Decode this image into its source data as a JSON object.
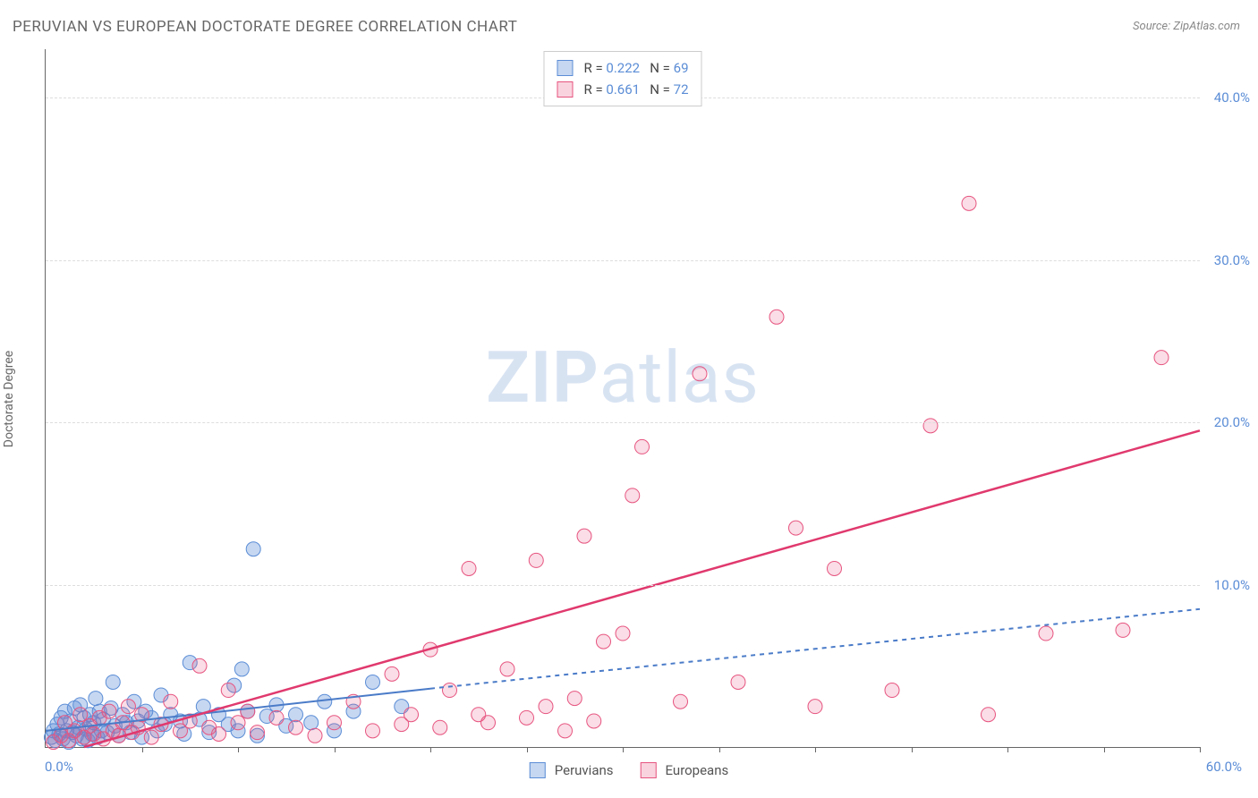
{
  "title": "PERUVIAN VS EUROPEAN DOCTORATE DEGREE CORRELATION CHART",
  "source": "Source: ZipAtlas.com",
  "watermark_bold": "ZIP",
  "watermark_light": "atlas",
  "ylabel": "Doctorate Degree",
  "chart": {
    "type": "scatter",
    "xlim": [
      0,
      60
    ],
    "ylim": [
      0,
      43
    ],
    "yticks": [
      10,
      20,
      30,
      40
    ],
    "ytick_labels": [
      "10.0%",
      "20.0%",
      "30.0%",
      "40.0%"
    ],
    "xticks": [
      5,
      10,
      15,
      20,
      25,
      30,
      35,
      40,
      45,
      50,
      55,
      60
    ],
    "xaxis_start": "0.0%",
    "xaxis_end": "60.0%",
    "grid_color": "#dddddd",
    "axis_color": "#666666",
    "background_color": "#ffffff",
    "marker_radius": 8,
    "series": [
      {
        "name": "Peruvians",
        "color_fill": "rgba(91,141,214,0.35)",
        "color_stroke": "#5b8dd6",
        "R": 0.222,
        "N": 69,
        "trend": {
          "x0": 0,
          "y0": 1.0,
          "x1": 20,
          "y1": 3.6,
          "x2": 60,
          "y2": 8.5,
          "solid_until": 20,
          "dash": "5,5",
          "width": 2,
          "color": "#4a7bc8"
        },
        "points": [
          [
            0.3,
            0.6
          ],
          [
            0.4,
            1.0
          ],
          [
            0.5,
            0.4
          ],
          [
            0.6,
            1.4
          ],
          [
            0.7,
            0.8
          ],
          [
            0.8,
            1.8
          ],
          [
            0.9,
            0.5
          ],
          [
            1.0,
            2.2
          ],
          [
            1.1,
            1.0
          ],
          [
            1.2,
            0.3
          ],
          [
            1.3,
            1.6
          ],
          [
            1.4,
            0.9
          ],
          [
            1.5,
            2.4
          ],
          [
            1.6,
            0.7
          ],
          [
            1.7,
            1.2
          ],
          [
            1.8,
            2.6
          ],
          [
            1.9,
            0.5
          ],
          [
            2.0,
            1.8
          ],
          [
            2.1,
            1.1
          ],
          [
            2.2,
            0.4
          ],
          [
            2.3,
            2.0
          ],
          [
            2.4,
            0.8
          ],
          [
            2.5,
            1.5
          ],
          [
            2.6,
            3.0
          ],
          [
            2.7,
            0.6
          ],
          [
            2.8,
            2.2
          ],
          [
            2.9,
            1.0
          ],
          [
            3.0,
            1.7
          ],
          [
            3.2,
            0.9
          ],
          [
            3.4,
            2.4
          ],
          [
            3.5,
            4.0
          ],
          [
            3.6,
            1.3
          ],
          [
            3.8,
            0.7
          ],
          [
            4.0,
            2.0
          ],
          [
            4.2,
            1.5
          ],
          [
            4.4,
            0.9
          ],
          [
            4.6,
            2.8
          ],
          [
            4.8,
            1.6
          ],
          [
            5.0,
            0.6
          ],
          [
            5.2,
            2.2
          ],
          [
            5.5,
            1.8
          ],
          [
            5.8,
            1.0
          ],
          [
            6.0,
            3.2
          ],
          [
            6.2,
            1.4
          ],
          [
            6.5,
            2.0
          ],
          [
            7.0,
            1.6
          ],
          [
            7.2,
            0.8
          ],
          [
            7.5,
            5.2
          ],
          [
            8.0,
            1.7
          ],
          [
            8.2,
            2.5
          ],
          [
            8.5,
            0.9
          ],
          [
            9.0,
            2.0
          ],
          [
            9.5,
            1.4
          ],
          [
            9.8,
            3.8
          ],
          [
            10.0,
            1.0
          ],
          [
            10.2,
            4.8
          ],
          [
            10.5,
            2.2
          ],
          [
            11.0,
            0.7
          ],
          [
            11.5,
            1.9
          ],
          [
            12.0,
            2.6
          ],
          [
            12.5,
            1.3
          ],
          [
            13.0,
            2.0
          ],
          [
            13.8,
            1.5
          ],
          [
            14.5,
            2.8
          ],
          [
            15.0,
            1.0
          ],
          [
            16.0,
            2.2
          ],
          [
            17.0,
            4.0
          ],
          [
            10.8,
            12.2
          ],
          [
            18.5,
            2.5
          ]
        ]
      },
      {
        "name": "Europeans",
        "color_fill": "rgba(231,84,128,0.2)",
        "color_stroke": "#e75480",
        "R": 0.661,
        "N": 72,
        "trend": {
          "x0": 2,
          "y0": 0,
          "x1": 60,
          "y1": 19.5,
          "solid_until": 60,
          "width": 2.5,
          "color": "#e0396e"
        },
        "points": [
          [
            0.4,
            0.3
          ],
          [
            0.8,
            0.7
          ],
          [
            1.0,
            1.5
          ],
          [
            1.2,
            0.4
          ],
          [
            1.5,
            1.0
          ],
          [
            1.8,
            2.0
          ],
          [
            2.0,
            0.6
          ],
          [
            2.3,
            1.3
          ],
          [
            2.5,
            0.8
          ],
          [
            2.8,
            1.8
          ],
          [
            3.0,
            0.5
          ],
          [
            3.3,
            2.2
          ],
          [
            3.5,
            1.0
          ],
          [
            3.8,
            0.7
          ],
          [
            4.0,
            1.5
          ],
          [
            4.3,
            2.5
          ],
          [
            4.5,
            0.9
          ],
          [
            4.8,
            1.2
          ],
          [
            5.0,
            2.0
          ],
          [
            5.5,
            0.6
          ],
          [
            6.0,
            1.4
          ],
          [
            6.5,
            2.8
          ],
          [
            7.0,
            1.0
          ],
          [
            7.5,
            1.6
          ],
          [
            8.0,
            5.0
          ],
          [
            8.5,
            1.2
          ],
          [
            9.0,
            0.8
          ],
          [
            9.5,
            3.5
          ],
          [
            10.0,
            1.5
          ],
          [
            10.5,
            2.2
          ],
          [
            11.0,
            0.9
          ],
          [
            12.0,
            1.8
          ],
          [
            13.0,
            1.2
          ],
          [
            14.0,
            0.7
          ],
          [
            15.0,
            1.5
          ],
          [
            16.0,
            2.8
          ],
          [
            17.0,
            1.0
          ],
          [
            18.0,
            4.5
          ],
          [
            18.5,
            1.4
          ],
          [
            19.0,
            2.0
          ],
          [
            20.0,
            6.0
          ],
          [
            20.5,
            1.2
          ],
          [
            21.0,
            3.5
          ],
          [
            22.0,
            11.0
          ],
          [
            22.5,
            2.0
          ],
          [
            23.0,
            1.5
          ],
          [
            24.0,
            4.8
          ],
          [
            25.0,
            1.8
          ],
          [
            25.5,
            11.5
          ],
          [
            26.0,
            2.5
          ],
          [
            27.0,
            1.0
          ],
          [
            27.5,
            3.0
          ],
          [
            28.0,
            13.0
          ],
          [
            28.5,
            1.6
          ],
          [
            29.0,
            6.5
          ],
          [
            30.0,
            7.0
          ],
          [
            30.5,
            15.5
          ],
          [
            31.0,
            18.5
          ],
          [
            33.0,
            2.8
          ],
          [
            34.0,
            23.0
          ],
          [
            36.0,
            4.0
          ],
          [
            38.0,
            26.5
          ],
          [
            39.0,
            13.5
          ],
          [
            40.0,
            2.5
          ],
          [
            41.0,
            11.0
          ],
          [
            46.0,
            19.8
          ],
          [
            48.0,
            33.5
          ],
          [
            49.0,
            2.0
          ],
          [
            52.0,
            7.0
          ],
          [
            56.0,
            7.2
          ],
          [
            58.0,
            24.0
          ],
          [
            44.0,
            3.5
          ]
        ]
      }
    ],
    "legend_bottom": [
      {
        "swatch": "blue",
        "label": "Peruvians"
      },
      {
        "swatch": "pink",
        "label": "Europeans"
      }
    ]
  }
}
